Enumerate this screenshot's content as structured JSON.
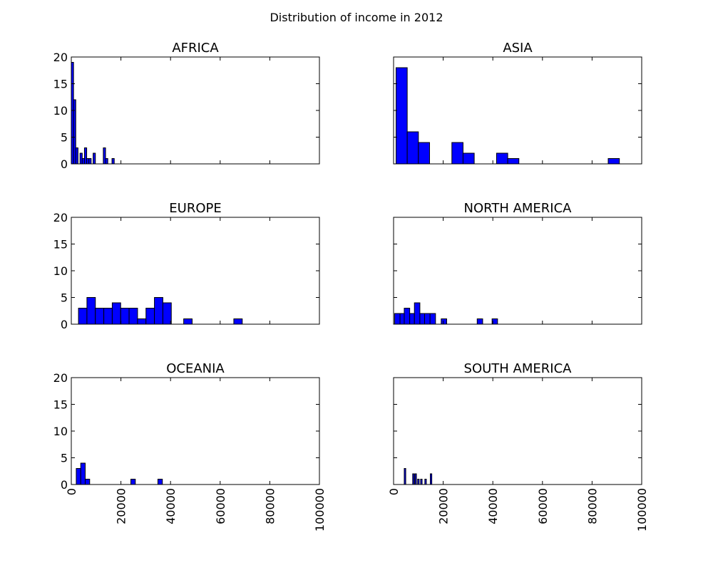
{
  "figure": {
    "title": "Distribution of income in 2012"
  },
  "chart_data": [
    {
      "type": "histogram",
      "title": "AFRICA",
      "xlim": [
        0,
        100000
      ],
      "ylim": [
        0,
        20
      ],
      "yticks": [
        0,
        5,
        10,
        15,
        20
      ],
      "xticks": [
        0,
        20000,
        40000,
        60000,
        80000,
        100000
      ],
      "bar_color": "#0000ff",
      "bins": [
        {
          "x0": 0,
          "x1": 900,
          "count": 19
        },
        {
          "x0": 900,
          "x1": 1800,
          "count": 12
        },
        {
          "x0": 1800,
          "x1": 2700,
          "count": 3
        },
        {
          "x0": 3500,
          "x1": 4400,
          "count": 2
        },
        {
          "x0": 4400,
          "x1": 5300,
          "count": 1
        },
        {
          "x0": 5300,
          "x1": 6200,
          "count": 3
        },
        {
          "x0": 6200,
          "x1": 7100,
          "count": 1
        },
        {
          "x0": 7100,
          "x1": 8000,
          "count": 1
        },
        {
          "x0": 8800,
          "x1": 9700,
          "count": 2
        },
        {
          "x0": 12900,
          "x1": 13800,
          "count": 3
        },
        {
          "x0": 13800,
          "x1": 14700,
          "count": 1
        },
        {
          "x0": 16400,
          "x1": 17300,
          "count": 1
        }
      ]
    },
    {
      "type": "histogram",
      "title": "ASIA",
      "xlim": [
        0,
        100000
      ],
      "ylim": [
        0,
        20
      ],
      "yticks": [
        0,
        5,
        10,
        15,
        20
      ],
      "xticks": [
        0,
        20000,
        40000,
        60000,
        80000,
        100000
      ],
      "bar_color": "#0000ff",
      "bins": [
        {
          "x0": 1000,
          "x1": 5500,
          "count": 18
        },
        {
          "x0": 5500,
          "x1": 10000,
          "count": 6
        },
        {
          "x0": 10000,
          "x1": 14500,
          "count": 4
        },
        {
          "x0": 23500,
          "x1": 28000,
          "count": 4
        },
        {
          "x0": 28000,
          "x1": 32500,
          "count": 2
        },
        {
          "x0": 41500,
          "x1": 46000,
          "count": 2
        },
        {
          "x0": 46000,
          "x1": 50500,
          "count": 1
        },
        {
          "x0": 86500,
          "x1": 91000,
          "count": 1
        }
      ]
    },
    {
      "type": "histogram",
      "title": "EUROPE",
      "xlim": [
        0,
        100000
      ],
      "ylim": [
        0,
        20
      ],
      "yticks": [
        0,
        5,
        10,
        15,
        20
      ],
      "xticks": [
        0,
        20000,
        40000,
        60000,
        80000,
        100000
      ],
      "bar_color": "#0000ff",
      "bins": [
        {
          "x0": 2900,
          "x1": 6300,
          "count": 3
        },
        {
          "x0": 6300,
          "x1": 9700,
          "count": 5
        },
        {
          "x0": 9700,
          "x1": 13100,
          "count": 3
        },
        {
          "x0": 13100,
          "x1": 16500,
          "count": 3
        },
        {
          "x0": 16500,
          "x1": 19900,
          "count": 4
        },
        {
          "x0": 19900,
          "x1": 23300,
          "count": 3
        },
        {
          "x0": 23300,
          "x1": 26700,
          "count": 3
        },
        {
          "x0": 26700,
          "x1": 30100,
          "count": 1
        },
        {
          "x0": 30100,
          "x1": 33500,
          "count": 3
        },
        {
          "x0": 33500,
          "x1": 36900,
          "count": 5
        },
        {
          "x0": 36900,
          "x1": 40300,
          "count": 4
        },
        {
          "x0": 45300,
          "x1": 48700,
          "count": 1
        },
        {
          "x0": 65500,
          "x1": 68900,
          "count": 1
        }
      ]
    },
    {
      "type": "histogram",
      "title": "NORTH AMERICA",
      "xlim": [
        0,
        100000
      ],
      "ylim": [
        0,
        20
      ],
      "yticks": [
        0,
        5,
        10,
        15,
        20
      ],
      "xticks": [
        0,
        20000,
        40000,
        60000,
        80000,
        100000
      ],
      "bar_color": "#0000ff",
      "bins": [
        {
          "x0": 400,
          "x1": 2600,
          "count": 2
        },
        {
          "x0": 2600,
          "x1": 4300,
          "count": 2
        },
        {
          "x0": 4300,
          "x1": 6500,
          "count": 3
        },
        {
          "x0": 6500,
          "x1": 8400,
          "count": 2
        },
        {
          "x0": 8400,
          "x1": 10600,
          "count": 4
        },
        {
          "x0": 10600,
          "x1": 12500,
          "count": 2
        },
        {
          "x0": 12500,
          "x1": 14700,
          "count": 2
        },
        {
          "x0": 14700,
          "x1": 16900,
          "count": 2
        },
        {
          "x0": 19200,
          "x1": 21400,
          "count": 1
        },
        {
          "x0": 33700,
          "x1": 35900,
          "count": 1
        },
        {
          "x0": 39700,
          "x1": 41900,
          "count": 1
        }
      ]
    },
    {
      "type": "histogram",
      "title": "OCEANIA",
      "xlim": [
        0,
        100000
      ],
      "ylim": [
        0,
        20
      ],
      "yticks": [
        0,
        5,
        10,
        15,
        20
      ],
      "xticks": [
        0,
        20000,
        40000,
        60000,
        80000,
        100000
      ],
      "xticklabels": [
        "0",
        "20000",
        "40000",
        "60000",
        "80000",
        "100000"
      ],
      "bar_color": "#0000ff",
      "bins": [
        {
          "x0": 2000,
          "x1": 3800,
          "count": 3
        },
        {
          "x0": 3800,
          "x1": 5600,
          "count": 4
        },
        {
          "x0": 5600,
          "x1": 7400,
          "count": 1
        },
        {
          "x0": 24000,
          "x1": 25800,
          "count": 1
        },
        {
          "x0": 34900,
          "x1": 36700,
          "count": 1
        }
      ]
    },
    {
      "type": "histogram",
      "title": "SOUTH AMERICA",
      "xlim": [
        0,
        100000
      ],
      "ylim": [
        0,
        20
      ],
      "yticks": [
        0,
        5,
        10,
        15,
        20
      ],
      "xticks": [
        0,
        20000,
        40000,
        60000,
        80000,
        100000
      ],
      "xticklabels": [
        "0",
        "20000",
        "40000",
        "60000",
        "80000",
        "100000"
      ],
      "bar_color": "#0000ff",
      "bins": [
        {
          "x0": 4300,
          "x1": 4900,
          "count": 3
        },
        {
          "x0": 7700,
          "x1": 8300,
          "count": 2
        },
        {
          "x0": 8600,
          "x1": 9200,
          "count": 2
        },
        {
          "x0": 9700,
          "x1": 10300,
          "count": 1
        },
        {
          "x0": 10900,
          "x1": 11500,
          "count": 1
        },
        {
          "x0": 12600,
          "x1": 13200,
          "count": 1
        },
        {
          "x0": 14800,
          "x1": 15400,
          "count": 2
        }
      ]
    }
  ]
}
